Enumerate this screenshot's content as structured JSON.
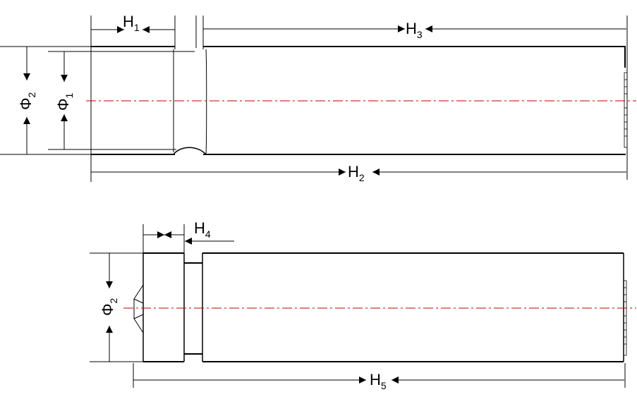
{
  "top_view": {
    "h1": {
      "main": "H",
      "sub": "1"
    },
    "h2": {
      "main": "H",
      "sub": "2"
    },
    "h3": {
      "main": "H",
      "sub": "3"
    },
    "phi1": {
      "main": "Φ",
      "sub": "1"
    },
    "phi2": {
      "main": "Φ",
      "sub": "2"
    }
  },
  "bottom_view": {
    "h4": {
      "main": "H",
      "sub": "4"
    },
    "h5": {
      "main": "H",
      "sub": "5"
    },
    "phi2": {
      "main": "Φ",
      "sub": "2"
    }
  },
  "colors": {
    "outline": "#000000",
    "centerline": "#c00000"
  }
}
